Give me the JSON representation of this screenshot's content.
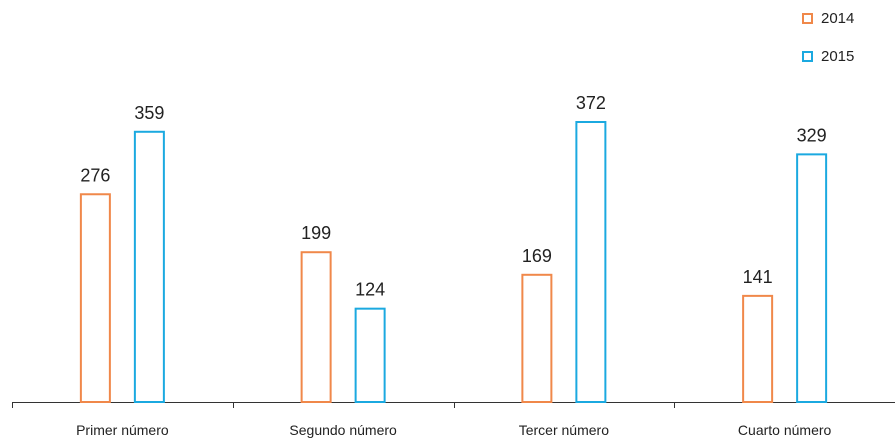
{
  "chart_data": {
    "type": "bar",
    "categories": [
      "Primer número",
      "Segundo número",
      "Tercer número",
      "Cuarto número"
    ],
    "series": [
      {
        "name": "2014",
        "values": [
          276,
          199,
          169,
          141
        ],
        "color": "#f0884a"
      },
      {
        "name": "2015",
        "values": [
          359,
          124,
          372,
          329
        ],
        "color": "#1ba9e0"
      }
    ],
    "ylim": [
      0,
      372
    ],
    "legend_position": "top-right",
    "grid": false,
    "bar_style": "outline",
    "data_labels": true
  }
}
